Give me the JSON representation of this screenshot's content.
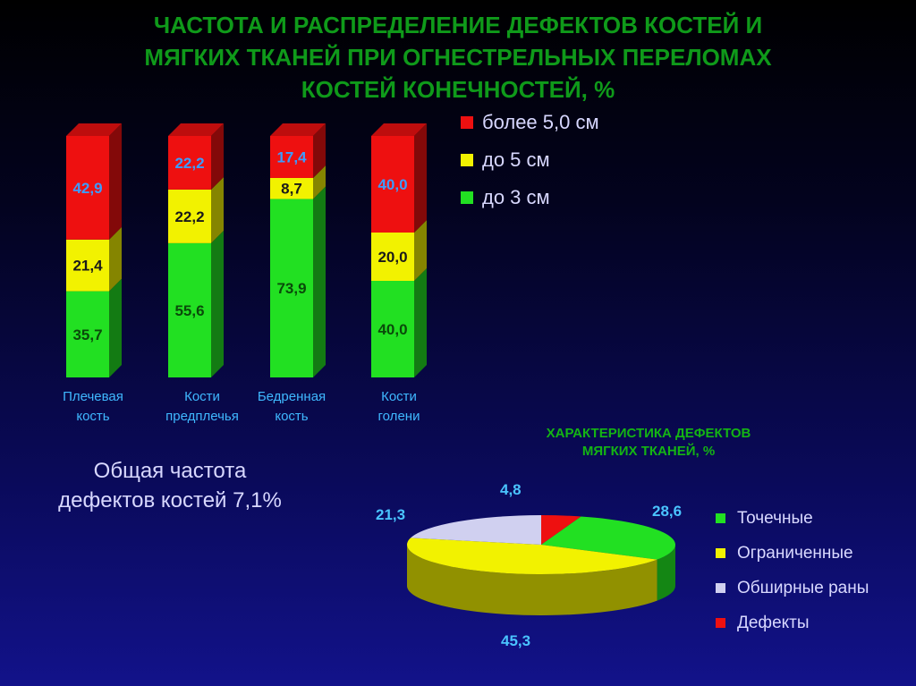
{
  "title_lines": [
    "ЧАСТОТА И РАСПРЕДЕЛЕНИЕ  ДЕФЕКТОВ КОСТЕЙ И",
    "МЯГКИХ ТКАНЕЙ ПРИ ОГНЕСТРЕЛЬНЫХ ПЕРЕЛОМАХ",
    "КОСТЕЙ КОНЕЧНОСТЕЙ, %"
  ],
  "note_lines": [
    "Общая частота",
    "дефектов костей 7,1%"
  ],
  "colors": {
    "green": "#22e022",
    "yellow": "#f2f200",
    "red": "#ee1010",
    "lavender": "#d0d0f0"
  },
  "chart_data": [
    {
      "type": "bar",
      "stacked": true,
      "categories": [
        [
          "Плечевая",
          "кость"
        ],
        [
          "Кости",
          "предплечья"
        ],
        [
          "Бедренная",
          "кость"
        ],
        [
          "Кости",
          "голени"
        ]
      ],
      "series": [
        {
          "name": "до 3 см",
          "color": "#22e022",
          "values": [
            35.7,
            55.6,
            73.9,
            40.0
          ],
          "labels": [
            "35,7",
            "55,6",
            "73,9",
            "40,0"
          ]
        },
        {
          "name": "до 5 см",
          "color": "#f2f200",
          "values": [
            21.4,
            22.2,
            8.7,
            20.0
          ],
          "labels": [
            "21,4",
            "22,2",
            "8,7",
            "20,0"
          ]
        },
        {
          "name": "более 5,0 см",
          "color": "#ee1010",
          "values": [
            42.9,
            22.2,
            17.4,
            40.0
          ],
          "labels": [
            "42,9",
            "22,2",
            "17,4",
            "40,0"
          ]
        }
      ],
      "legend_order": [
        "более 5,0 см",
        "до 5 см",
        "до 3 см"
      ],
      "legend_position": "right",
      "ylim": [
        0,
        100
      ],
      "grid": false
    },
    {
      "type": "pie",
      "title_lines": [
        "ХАРАКТЕРИСТИКА  ДЕФЕКТОВ",
        "МЯГКИХ ТКАНЕЙ, %"
      ],
      "slices": [
        {
          "name": "Точечные",
          "value": 28.6,
          "label": "28,6",
          "color": "#22e022"
        },
        {
          "name": "Ограниченные",
          "value": 45.3,
          "label": "45,3",
          "color": "#f2f200"
        },
        {
          "name": "Обширные раны",
          "value": 21.3,
          "label": "21,3",
          "color": "#d0d0f0"
        },
        {
          "name": "Дефекты",
          "value": 4.8,
          "label": "4,8",
          "color": "#ee1010"
        }
      ],
      "legend_position": "right"
    }
  ]
}
